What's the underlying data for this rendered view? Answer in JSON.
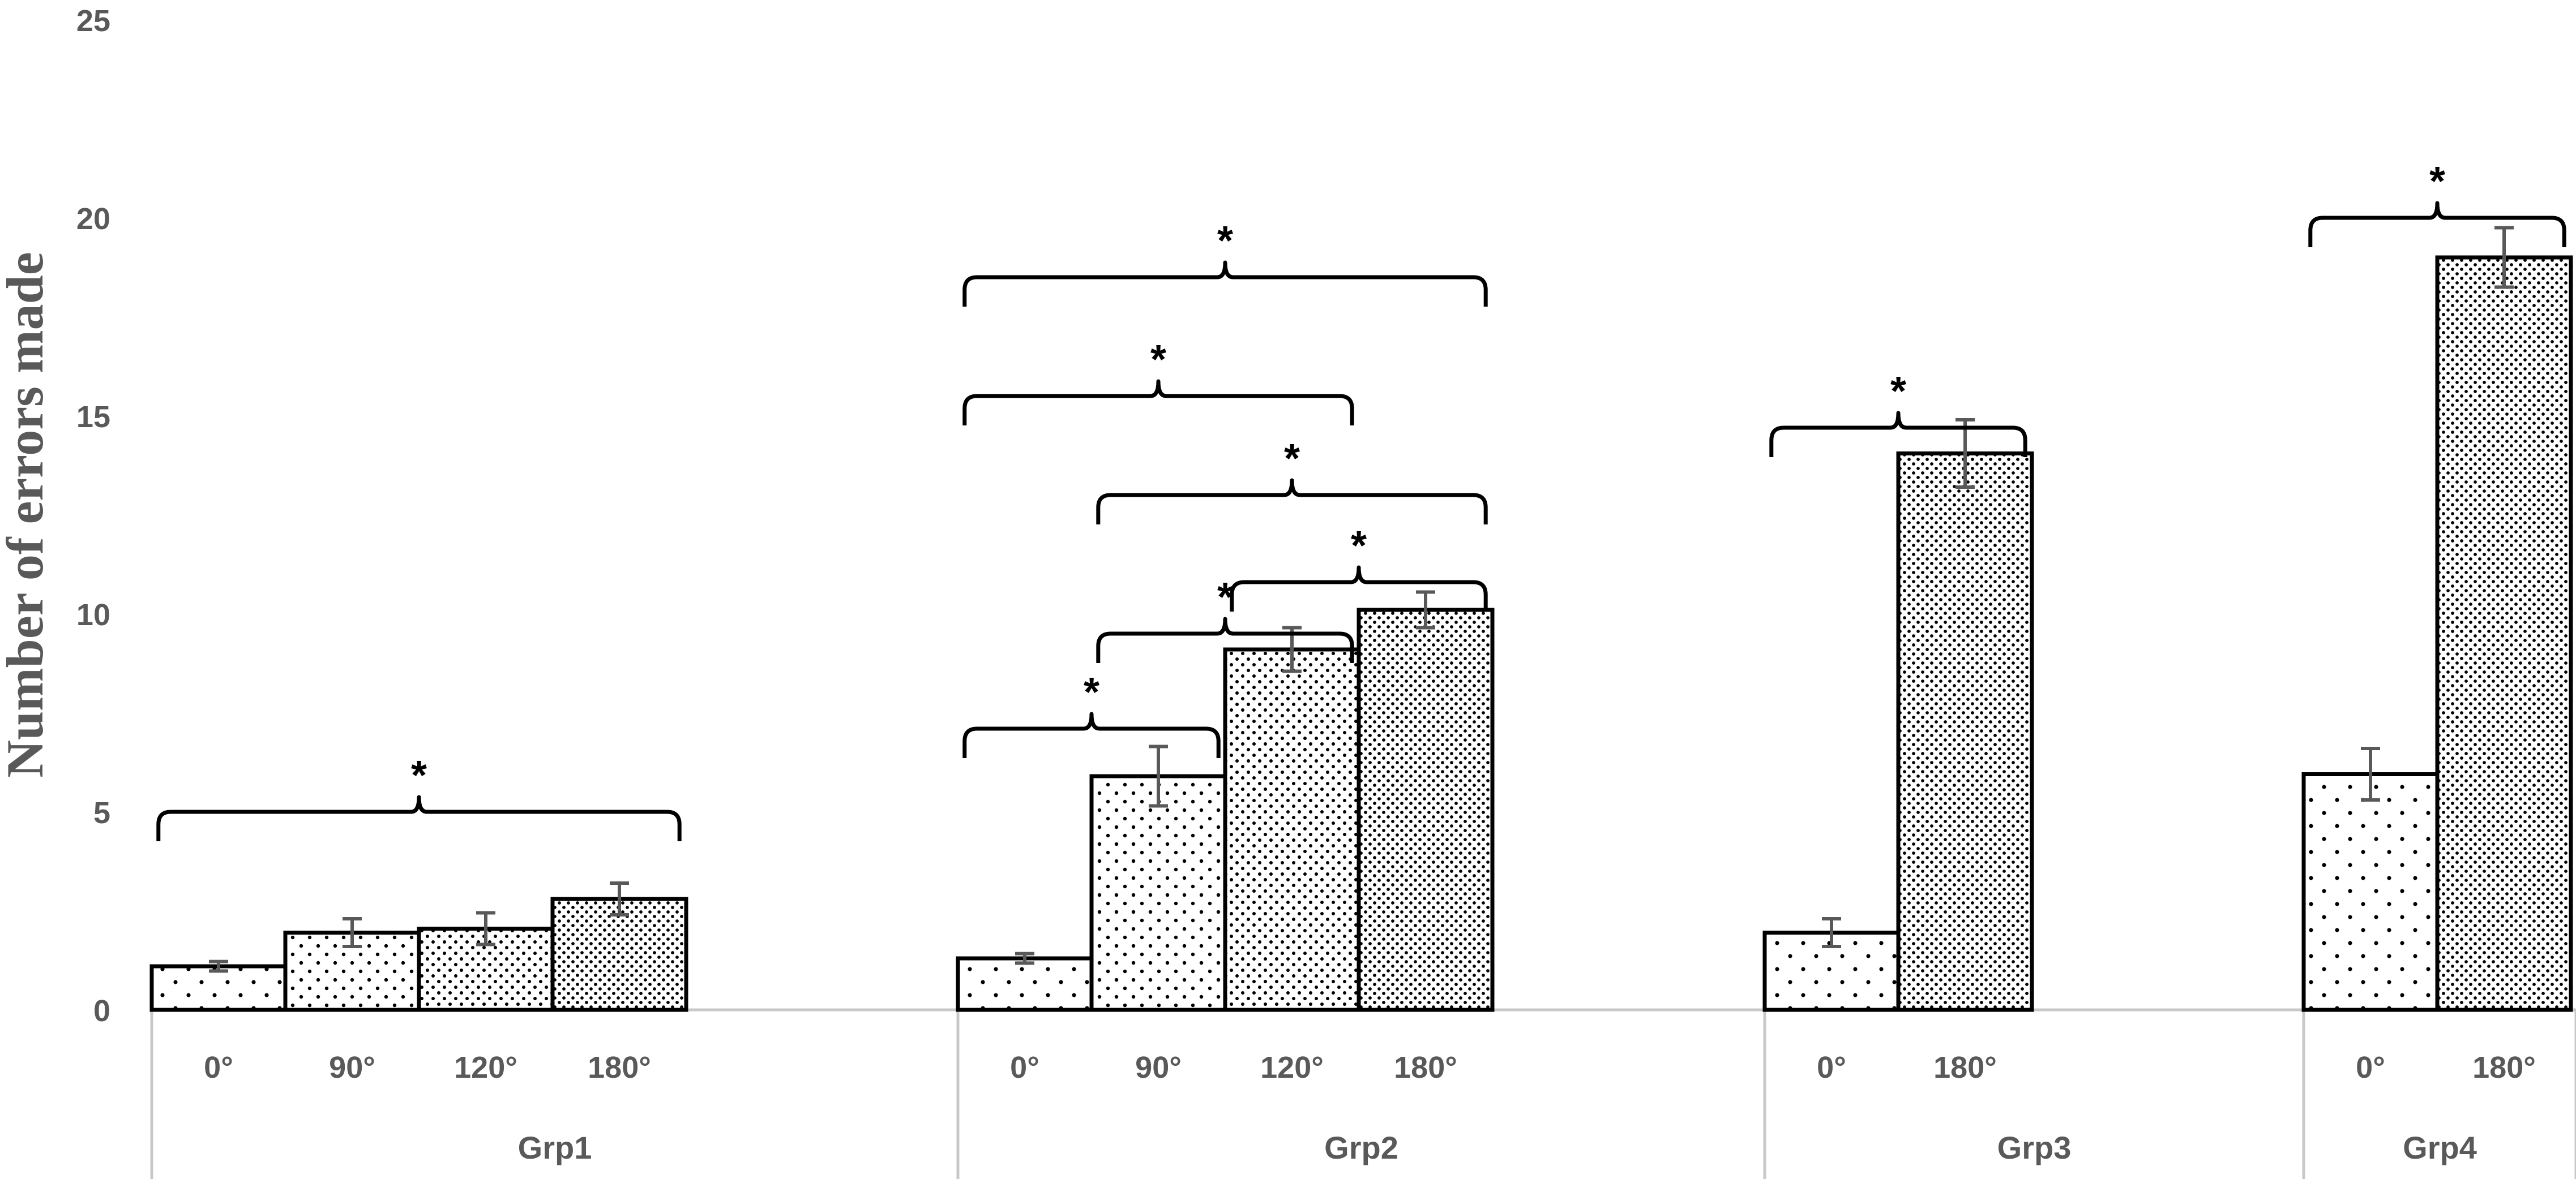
{
  "chart_data": {
    "type": "bar",
    "ylabel": "Number of errors made",
    "xlabel": "",
    "ylim": [
      0,
      25
    ],
    "yticks": [
      0,
      5,
      10,
      15,
      20,
      25
    ],
    "grid": false,
    "bar_patterns": {
      "0°": "dots-sparse",
      "90°": "dots-medium",
      "120°": "dots-dense",
      "180°": "dots-densest"
    },
    "groups": [
      {
        "name": "Grp1",
        "bars": [
          {
            "label": "0°",
            "value": 1.1,
            "error": 0.12
          },
          {
            "label": "90°",
            "value": 1.95,
            "error": 0.35
          },
          {
            "label": "120°",
            "value": 2.05,
            "error": 0.4
          },
          {
            "label": "180°",
            "value": 2.8,
            "error": 0.4
          }
        ],
        "significance": [
          {
            "from": 0,
            "to": 3,
            "level": 5.0,
            "symbol": "*"
          }
        ]
      },
      {
        "name": "Grp2",
        "bars": [
          {
            "label": "0°",
            "value": 1.3,
            "error": 0.12
          },
          {
            "label": "90°",
            "value": 5.9,
            "error": 0.75
          },
          {
            "label": "120°",
            "value": 9.1,
            "error": 0.55
          },
          {
            "label": "180°",
            "value": 10.1,
            "error": 0.45
          }
        ],
        "significance": [
          {
            "from": 0,
            "to": 1,
            "level": 7.1,
            "symbol": "*"
          },
          {
            "from": 1,
            "to": 2,
            "level": 9.5,
            "symbol": "*"
          },
          {
            "from": 2,
            "to": 3,
            "level": 10.8,
            "symbol": "*"
          },
          {
            "from": 1,
            "to": 3,
            "level": 13.0,
            "symbol": "*"
          },
          {
            "from": 0,
            "to": 2,
            "level": 15.5,
            "symbol": "*"
          },
          {
            "from": 0,
            "to": 3,
            "level": 18.5,
            "symbol": "*"
          }
        ]
      },
      {
        "name": "Grp3",
        "bars": [
          {
            "label": "0°",
            "value": 1.95,
            "error": 0.35
          },
          {
            "label": "180°",
            "value": 14.05,
            "error": 0.85
          }
        ],
        "significance": [
          {
            "from": 0,
            "to": 1,
            "level": 14.7,
            "symbol": "*"
          }
        ]
      },
      {
        "name": "Grp4",
        "bars": [
          {
            "label": "0°",
            "value": 5.95,
            "error": 0.65
          },
          {
            "label": "180°",
            "value": 19.0,
            "error": 0.75
          }
        ],
        "significance": [
          {
            "from": 0,
            "to": 1,
            "level": 20.0,
            "symbol": "*"
          }
        ]
      }
    ]
  }
}
